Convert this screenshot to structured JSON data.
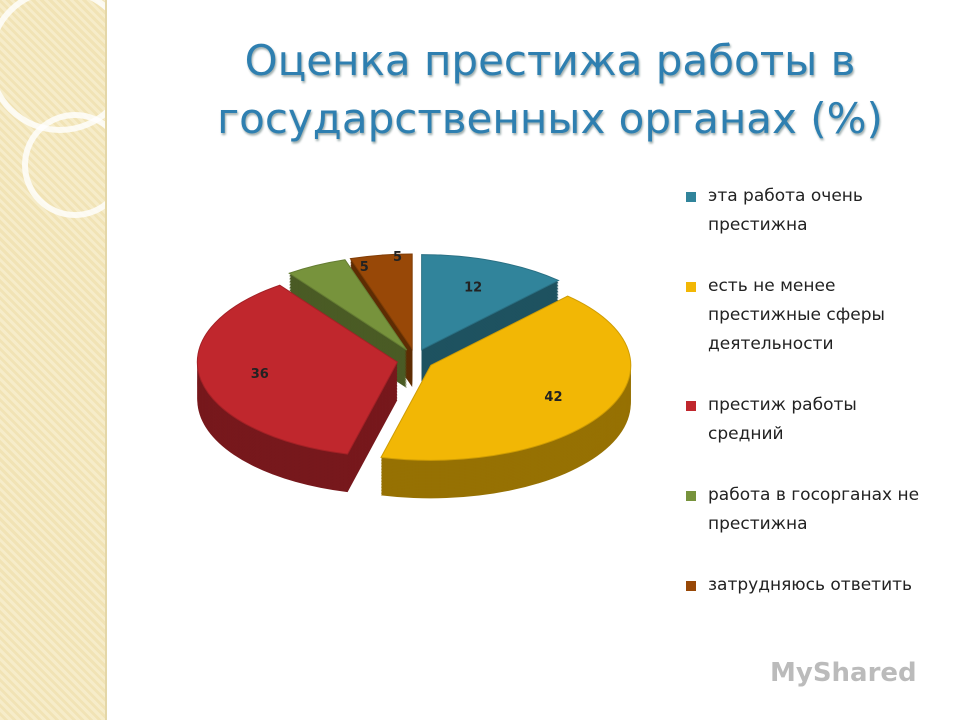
{
  "chart_data": {
    "type": "pie",
    "title": "Оценка престижа работы в государственных органах (%)",
    "categories": [
      "эта работа очень престижна",
      "есть  не менее престижные сферы деятельности",
      "престиж работы средний",
      "работа в госорганах не престижна",
      "затрудняюсь ответить"
    ],
    "values": [
      12,
      42,
      36,
      5,
      5
    ],
    "colors": [
      "#31849b",
      "#f2b705",
      "#c0272d",
      "#77933c",
      "#984807"
    ],
    "legend": "right"
  },
  "watermark": "MyShared"
}
